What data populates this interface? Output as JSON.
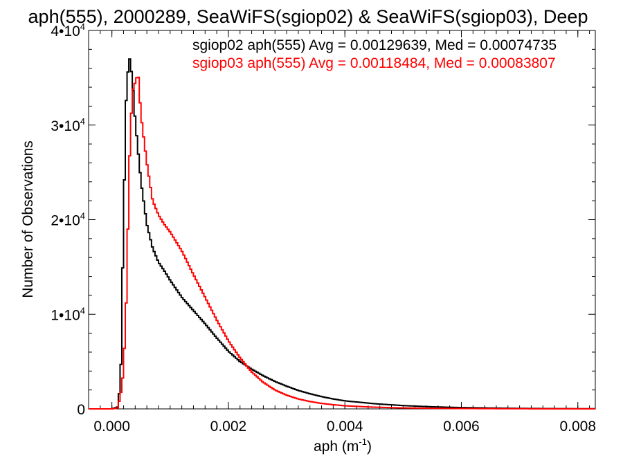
{
  "chart_data": {
    "type": "line",
    "step": true,
    "title": "aph(555), 2000289, SeaWiFS(sgiop02) & SeaWiFS(sgiop03), Deep",
    "xlabel": "aph (m",
    "xlabel_sup": "-1",
    "xlabel_close": ")",
    "ylabel": "Number of Observations",
    "xlim": [
      -0.0004,
      0.0083
    ],
    "ylim": [
      0,
      40000
    ],
    "grid": false,
    "x_ticks": [
      0.0,
      0.002,
      0.004,
      0.006,
      0.008
    ],
    "x_tick_labels": [
      "0.000",
      "0.002",
      "0.004",
      "0.006",
      "0.008"
    ],
    "y_ticks": [
      {
        "value": 0,
        "base": "0",
        "sup": ""
      },
      {
        "value": 10000,
        "base": "1•10",
        "sup": "4"
      },
      {
        "value": 20000,
        "base": "2•10",
        "sup": "4"
      },
      {
        "value": 30000,
        "base": "3•10",
        "sup": "4"
      },
      {
        "value": 40000,
        "base": "4•10",
        "sup": "4"
      }
    ],
    "legend_placement": "top-right",
    "series": [
      {
        "name": "sgiop02 aph(555) Avg = 0.00129639, Med = 0.00074735",
        "color": "#000000",
        "points": [
          [
            -0.0004,
            0
          ],
          [
            0.0,
            0
          ],
          [
            0.0001,
            200
          ],
          [
            0.00015,
            3000
          ],
          [
            0.0002,
            20000
          ],
          [
            0.00025,
            34000
          ],
          [
            0.0003,
            37200
          ],
          [
            0.00035,
            35000
          ],
          [
            0.0004,
            30500
          ],
          [
            0.0005,
            24000
          ],
          [
            0.0006,
            19500
          ],
          [
            0.0007,
            17000
          ],
          [
            0.0008,
            15500
          ],
          [
            0.0009,
            14600
          ],
          [
            0.001,
            13600
          ],
          [
            0.0012,
            11800
          ],
          [
            0.0014,
            10400
          ],
          [
            0.0016,
            9000
          ],
          [
            0.0018,
            7500
          ],
          [
            0.002,
            6100
          ],
          [
            0.0022,
            5000
          ],
          [
            0.0024,
            4200
          ],
          [
            0.0026,
            3500
          ],
          [
            0.0028,
            2900
          ],
          [
            0.003,
            2400
          ],
          [
            0.0032,
            1950
          ],
          [
            0.0034,
            1600
          ],
          [
            0.0036,
            1300
          ],
          [
            0.0038,
            1050
          ],
          [
            0.004,
            850
          ],
          [
            0.0045,
            550
          ],
          [
            0.005,
            350
          ],
          [
            0.0055,
            220
          ],
          [
            0.006,
            140
          ],
          [
            0.0065,
            90
          ],
          [
            0.007,
            55
          ],
          [
            0.0075,
            35
          ],
          [
            0.008,
            20
          ],
          [
            0.0083,
            15
          ]
        ]
      },
      {
        "name": "sgiop03 aph(555) Avg = 0.00118484, Med = 0.00083807",
        "color": "#ff0000",
        "points": [
          [
            -0.0004,
            0
          ],
          [
            0.0,
            0
          ],
          [
            0.0001,
            100
          ],
          [
            0.00015,
            1500
          ],
          [
            0.0002,
            4000
          ],
          [
            0.00025,
            12000
          ],
          [
            0.0003,
            26000
          ],
          [
            0.00035,
            33500
          ],
          [
            0.0004,
            34500
          ],
          [
            0.00045,
            35500
          ],
          [
            0.0005,
            31000
          ],
          [
            0.0006,
            26000
          ],
          [
            0.0007,
            22000
          ],
          [
            0.0008,
            20500
          ],
          [
            0.0009,
            19500
          ],
          [
            0.001,
            18700
          ],
          [
            0.0012,
            16700
          ],
          [
            0.0014,
            14200
          ],
          [
            0.0016,
            11800
          ],
          [
            0.0018,
            9400
          ],
          [
            0.002,
            7200
          ],
          [
            0.0022,
            5400
          ],
          [
            0.0024,
            3900
          ],
          [
            0.0026,
            2800
          ],
          [
            0.0028,
            2000
          ],
          [
            0.003,
            1450
          ],
          [
            0.0032,
            1050
          ],
          [
            0.0034,
            780
          ],
          [
            0.0036,
            580
          ],
          [
            0.0038,
            440
          ],
          [
            0.004,
            330
          ],
          [
            0.0045,
            180
          ],
          [
            0.005,
            100
          ],
          [
            0.0055,
            60
          ],
          [
            0.006,
            40
          ],
          [
            0.0065,
            25
          ],
          [
            0.007,
            15
          ],
          [
            0.0075,
            10
          ],
          [
            0.008,
            5
          ],
          [
            0.0083,
            5
          ]
        ]
      }
    ]
  }
}
